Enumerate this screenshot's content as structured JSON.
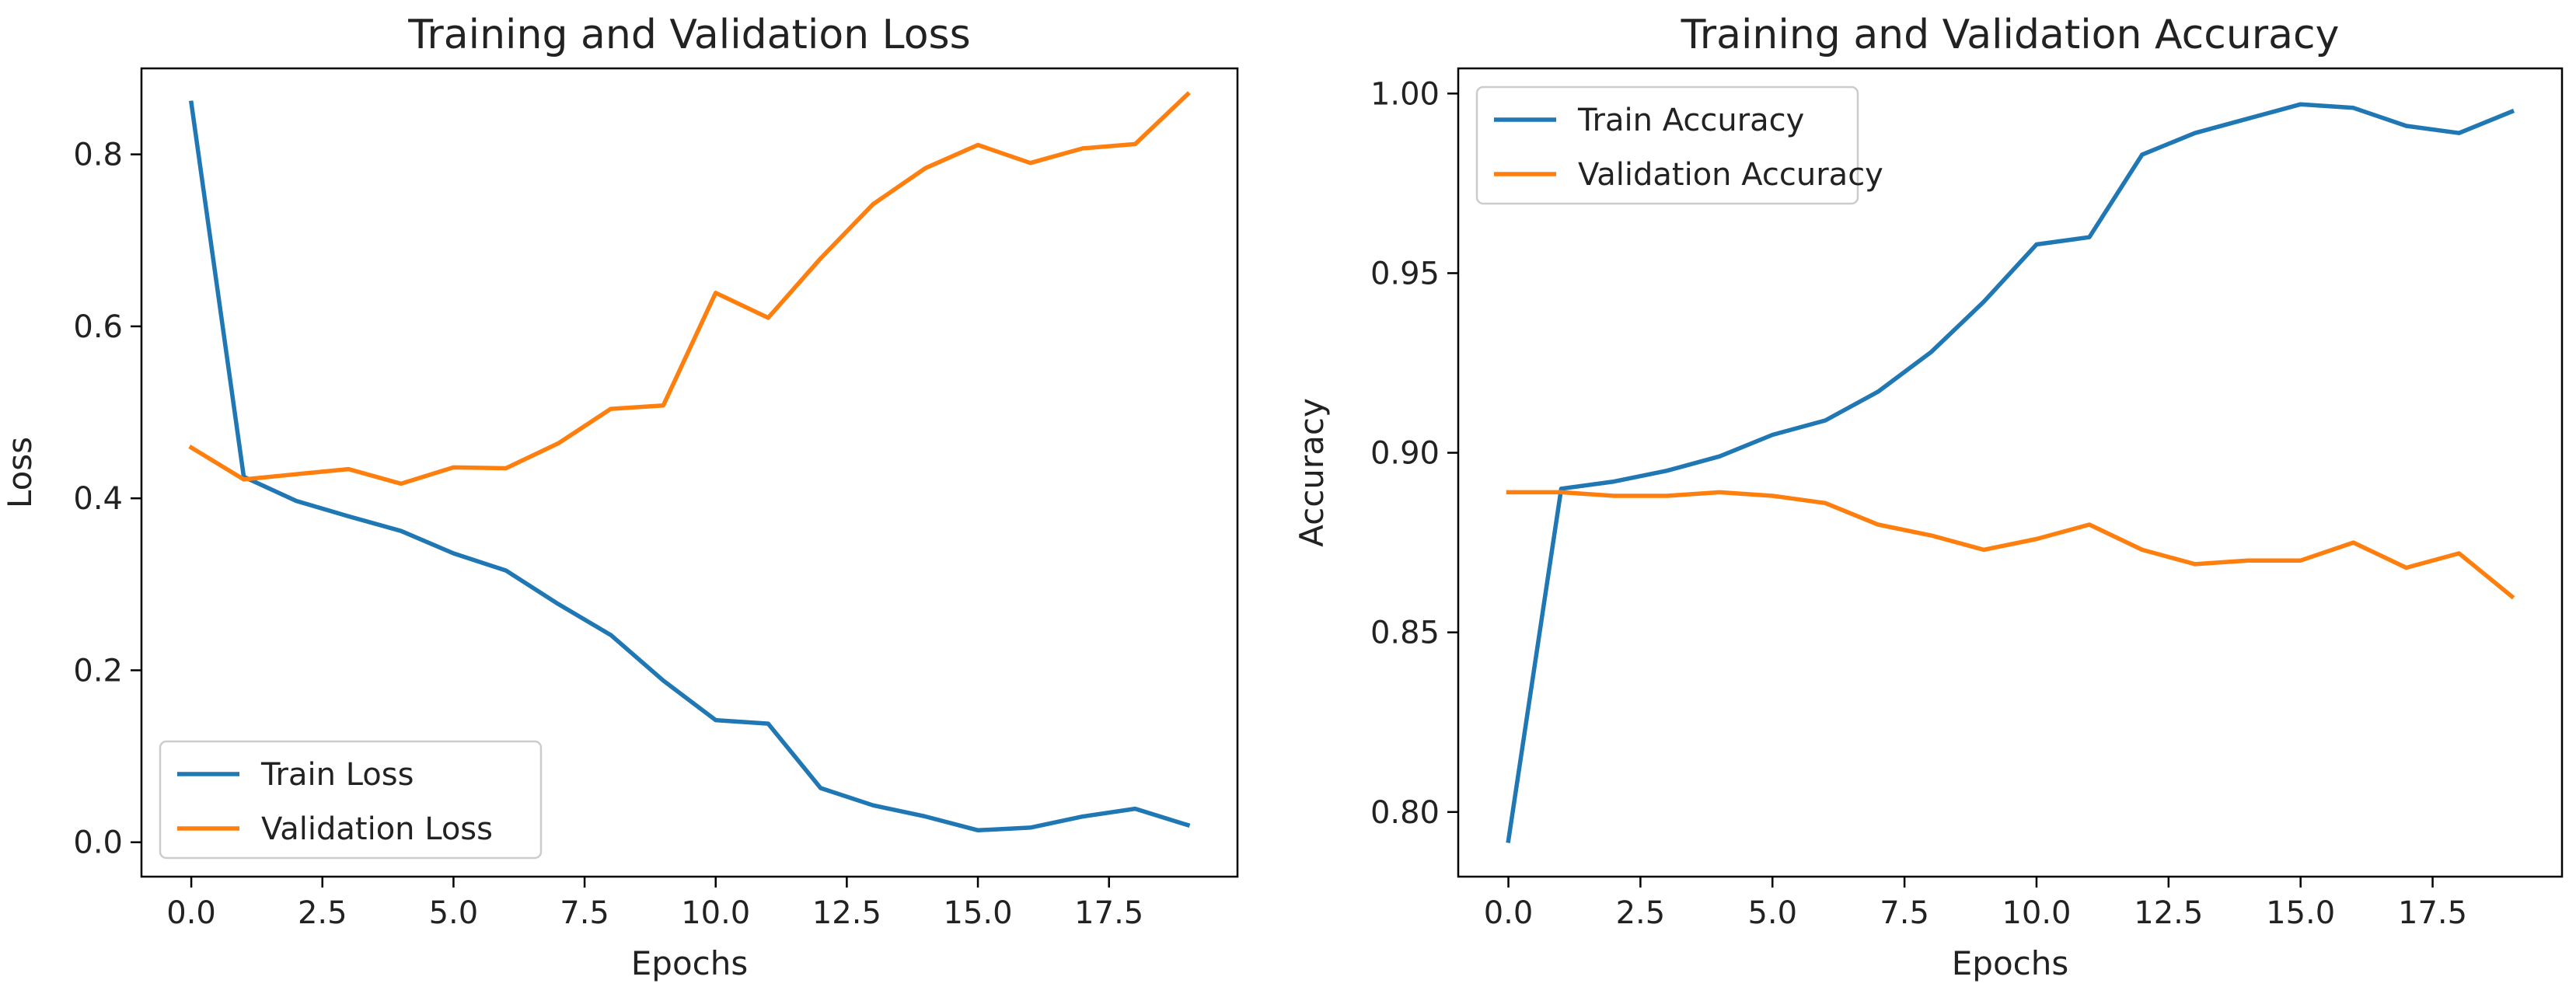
{
  "colors": {
    "train": "#1f77b4",
    "validation": "#ff7f0e",
    "axes": "#000000",
    "legend_border": "#cccccc"
  },
  "chart_data": [
    {
      "type": "line",
      "title": "Training and Validation Loss",
      "xlabel": "Epochs",
      "ylabel": "Loss",
      "xlim": [
        -0.95,
        19.95
      ],
      "ylim": [
        -0.04,
        0.9
      ],
      "xticks": [
        0,
        2.5,
        5,
        7.5,
        10,
        12.5,
        15,
        17.5
      ],
      "xtick_labels": [
        "0.0",
        "2.5",
        "5.0",
        "7.5",
        "10.0",
        "12.5",
        "15.0",
        "17.5"
      ],
      "yticks": [
        0,
        0.2,
        0.4,
        0.6,
        0.8
      ],
      "ytick_labels": [
        "0.0",
        "0.2",
        "0.4",
        "0.6",
        "0.8"
      ],
      "grid": false,
      "legend_position": "lower-left",
      "x": [
        0,
        1,
        2,
        3,
        4,
        5,
        6,
        7,
        8,
        9,
        10,
        11,
        12,
        13,
        14,
        15,
        16,
        17,
        18,
        19
      ],
      "series": [
        {
          "name": "Train Loss",
          "color": "#1f77b4",
          "values": [
            0.86,
            0.425,
            0.397,
            0.379,
            0.362,
            0.336,
            0.316,
            0.277,
            0.241,
            0.188,
            0.142,
            0.138,
            0.063,
            0.043,
            0.03,
            0.014,
            0.017,
            0.03,
            0.039,
            0.02
          ]
        },
        {
          "name": "Validation Loss",
          "color": "#ff7f0e",
          "values": [
            0.459,
            0.422,
            0.428,
            0.434,
            0.417,
            0.436,
            0.435,
            0.464,
            0.504,
            0.508,
            0.639,
            0.61,
            0.679,
            0.742,
            0.784,
            0.811,
            0.79,
            0.807,
            0.812,
            0.87
          ]
        }
      ]
    },
    {
      "type": "line",
      "title": "Training and Validation Accuracy",
      "xlabel": "Epochs",
      "ylabel": "Accuracy",
      "xlim": [
        -0.95,
        19.95
      ],
      "ylim": [
        0.782,
        1.007
      ],
      "xticks": [
        0,
        2.5,
        5,
        7.5,
        10,
        12.5,
        15,
        17.5
      ],
      "xtick_labels": [
        "0.0",
        "2.5",
        "5.0",
        "7.5",
        "10.0",
        "12.5",
        "15.0",
        "17.5"
      ],
      "yticks": [
        0.8,
        0.85,
        0.9,
        0.95,
        1.0
      ],
      "ytick_labels": [
        "0.80",
        "0.85",
        "0.90",
        "0.95",
        "1.00"
      ],
      "grid": false,
      "legend_position": "upper-left",
      "x": [
        0,
        1,
        2,
        3,
        4,
        5,
        6,
        7,
        8,
        9,
        10,
        11,
        12,
        13,
        14,
        15,
        16,
        17,
        18,
        19
      ],
      "series": [
        {
          "name": "Train Accuracy",
          "color": "#1f77b4",
          "values": [
            0.792,
            0.89,
            0.892,
            0.895,
            0.899,
            0.905,
            0.909,
            0.917,
            0.928,
            0.942,
            0.958,
            0.96,
            0.983,
            0.989,
            0.993,
            0.997,
            0.996,
            0.991,
            0.989,
            0.995
          ]
        },
        {
          "name": "Validation Accuracy",
          "color": "#ff7f0e",
          "values": [
            0.889,
            0.889,
            0.888,
            0.888,
            0.889,
            0.888,
            0.886,
            0.88,
            0.877,
            0.873,
            0.876,
            0.88,
            0.873,
            0.869,
            0.87,
            0.87,
            0.875,
            0.868,
            0.872,
            0.86
          ]
        }
      ]
    }
  ]
}
